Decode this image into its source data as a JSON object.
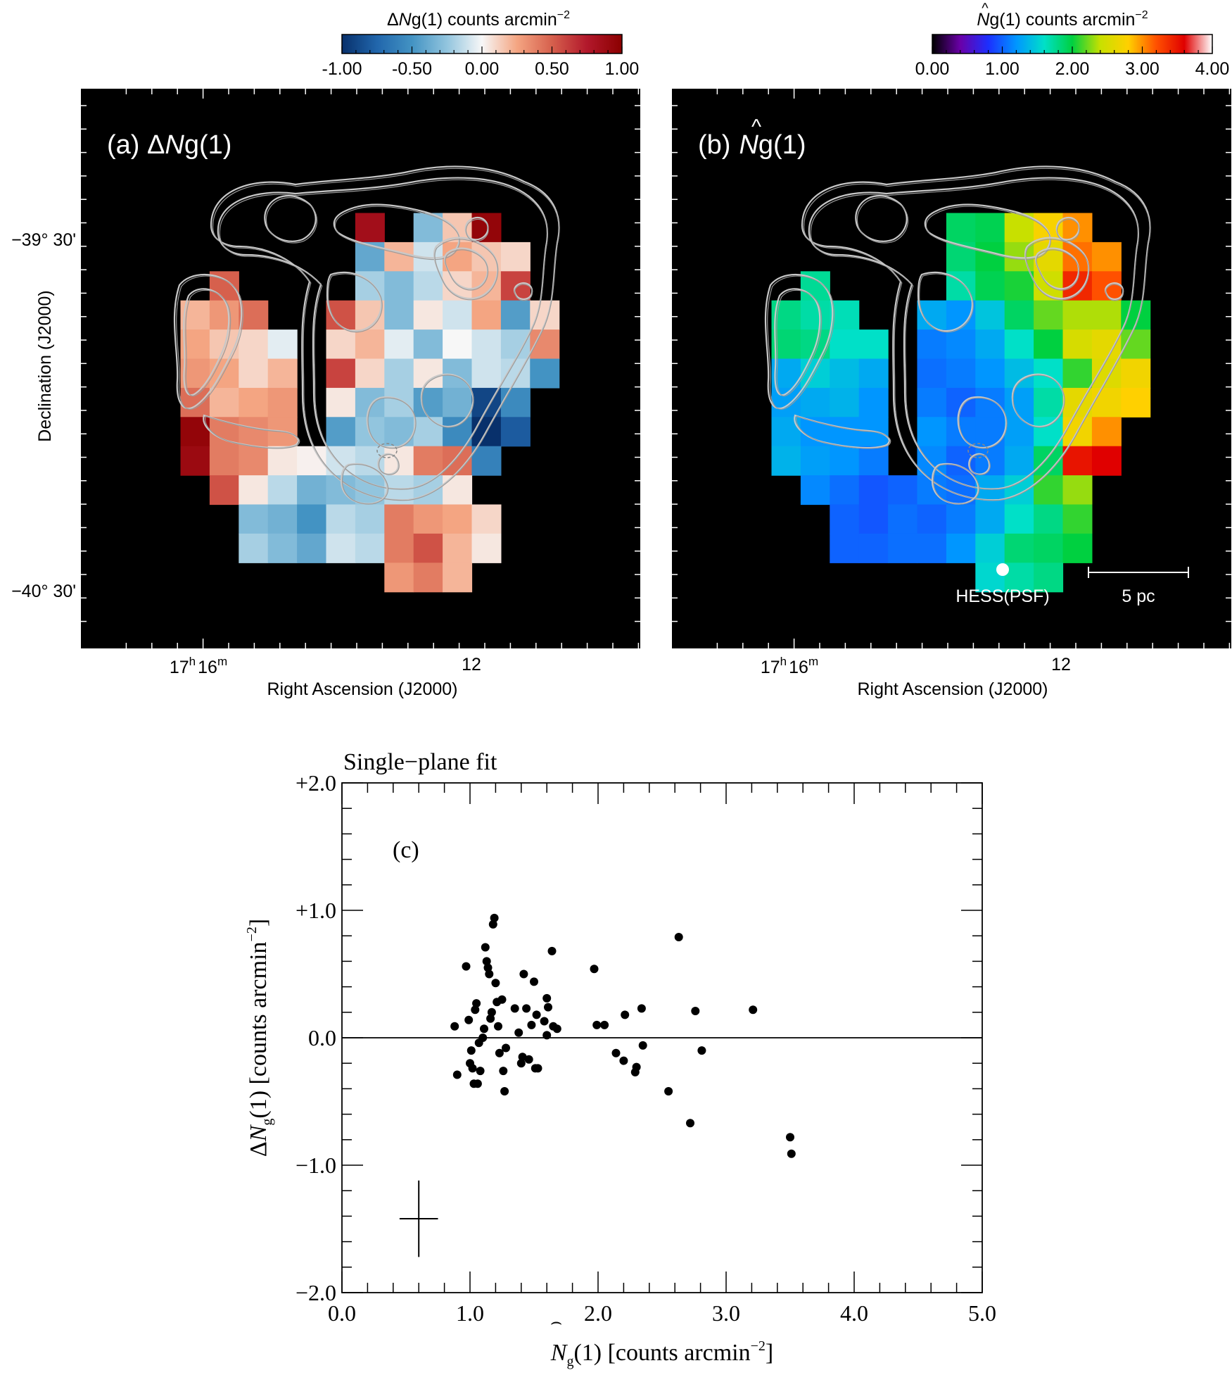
{
  "colorbar_a": {
    "label_delta": "Δ",
    "label_N": "N",
    "label_rest": "g(1) counts arcmin",
    "label_exp": "−2",
    "ticks": [
      "-1.00",
      "-0.50",
      "0.00",
      "0.50",
      "1.00"
    ],
    "range": [
      -1.0,
      1.0
    ],
    "colormap": [
      "#08306b",
      "#2166ac",
      "#4393c3",
      "#92c5de",
      "#f7f7f7",
      "#f4a582",
      "#d6604d",
      "#b2182b",
      "#8b0000"
    ]
  },
  "colorbar_b": {
    "label_hat": "^",
    "label_N": "N",
    "label_rest": "g(1) counts arcmin",
    "label_exp": "−2",
    "ticks": [
      "0.00",
      "1.00",
      "2.00",
      "3.00",
      "4.00"
    ],
    "range": [
      0.0,
      4.0
    ],
    "colormap": [
      "#000000",
      "#6a00a8",
      "#1c2fff",
      "#0096ff",
      "#00e0c8",
      "#00d040",
      "#c8e000",
      "#ffd000",
      "#ff5000",
      "#e00000",
      "#ffffff"
    ]
  },
  "panel_a": {
    "label_prefix": "(a) Δ",
    "label_N": "N",
    "label_suffix": "g(1)",
    "ylabel": "Declination (J2000)",
    "yticks": [
      "−39° 30'",
      "−40° 30'"
    ],
    "xtick_hour": "17",
    "xtick_h": "h",
    "xtick_min": "16",
    "xtick_m": "m",
    "xtick_12": "12",
    "xlabel": "Right Ascension (J2000)"
  },
  "panel_b": {
    "label_prefix": "(b)",
    "label_hat": "^",
    "label_N": "N",
    "label_suffix": "g(1)",
    "psf_label": "HESS(PSF)",
    "scale_label": "5 pc",
    "xtick_hour": "17",
    "xtick_h": "h",
    "xtick_min": "16",
    "xtick_m": "m",
    "xtick_12": "12",
    "xlabel": "Right Ascension (J2000)"
  },
  "chart_data": {
    "type": "scatter",
    "title": "Single−plane fit",
    "panel_label": "(c)",
    "xlabel_N": "N",
    "xlabel_sub": "g",
    "xlabel_rest": "(1) [counts arcmin",
    "xlabel_exp": "−2",
    "xlabel_end": "]",
    "ylabel_delta": "Δ",
    "ylabel_N": "N",
    "ylabel_sub": "g",
    "ylabel_rest": "(1) [counts arcmin",
    "ylabel_exp": "−2",
    "ylabel_end": "]",
    "xlim": [
      0,
      5
    ],
    "ylim": [
      -2,
      2
    ],
    "xtick_labels": [
      "0.0",
      "1.0",
      "2.0",
      "3.0",
      "4.0",
      "5.0"
    ],
    "ytick_labels": [
      "−2.0",
      "−1.0",
      "0.0",
      "+1.0",
      "+2.0"
    ],
    "reference_line_y": 0.0,
    "typical_error": {
      "x": 0.6,
      "y": -1.42,
      "xerr": 0.15,
      "yerr": 0.3
    },
    "points": [
      [
        0.88,
        0.09
      ],
      [
        0.9,
        -0.29
      ],
      [
        0.97,
        0.56
      ],
      [
        0.99,
        0.14
      ],
      [
        1.0,
        -0.2
      ],
      [
        1.01,
        -0.1
      ],
      [
        1.02,
        -0.24
      ],
      [
        1.03,
        -0.36
      ],
      [
        1.04,
        0.22
      ],
      [
        1.05,
        0.27
      ],
      [
        1.06,
        -0.36
      ],
      [
        1.07,
        -0.04
      ],
      [
        1.08,
        -0.26
      ],
      [
        1.1,
        0.0
      ],
      [
        1.11,
        0.07
      ],
      [
        1.12,
        0.71
      ],
      [
        1.13,
        0.6
      ],
      [
        1.14,
        0.55
      ],
      [
        1.15,
        0.5
      ],
      [
        1.16,
        0.15
      ],
      [
        1.17,
        0.2
      ],
      [
        1.18,
        0.89
      ],
      [
        1.19,
        0.94
      ],
      [
        1.2,
        0.43
      ],
      [
        1.21,
        0.28
      ],
      [
        1.22,
        0.09
      ],
      [
        1.23,
        -0.12
      ],
      [
        1.25,
        0.3
      ],
      [
        1.26,
        -0.26
      ],
      [
        1.27,
        -0.42
      ],
      [
        1.28,
        -0.08
      ],
      [
        1.35,
        0.23
      ],
      [
        1.38,
        0.04
      ],
      [
        1.4,
        -0.2
      ],
      [
        1.41,
        -0.15
      ],
      [
        1.42,
        0.5
      ],
      [
        1.44,
        0.23
      ],
      [
        1.46,
        -0.17
      ],
      [
        1.48,
        0.1
      ],
      [
        1.5,
        0.44
      ],
      [
        1.51,
        -0.24
      ],
      [
        1.52,
        0.18
      ],
      [
        1.53,
        -0.24
      ],
      [
        1.58,
        0.13
      ],
      [
        1.6,
        0.31
      ],
      [
        1.61,
        0.24
      ],
      [
        1.6,
        0.02
      ],
      [
        1.64,
        0.68
      ],
      [
        1.65,
        0.09
      ],
      [
        1.68,
        0.07
      ],
      [
        1.97,
        0.54
      ],
      [
        1.99,
        0.1
      ],
      [
        2.05,
        0.1
      ],
      [
        2.14,
        -0.12
      ],
      [
        2.2,
        -0.18
      ],
      [
        2.21,
        0.18
      ],
      [
        2.29,
        -0.27
      ],
      [
        2.3,
        -0.23
      ],
      [
        2.34,
        0.23
      ],
      [
        2.35,
        -0.06
      ],
      [
        2.55,
        -0.42
      ],
      [
        2.63,
        0.79
      ],
      [
        2.72,
        -0.67
      ],
      [
        2.76,
        0.21
      ],
      [
        2.81,
        -0.1
      ],
      [
        3.21,
        0.22
      ],
      [
        3.5,
        -0.78
      ],
      [
        3.51,
        -0.91
      ]
    ]
  }
}
